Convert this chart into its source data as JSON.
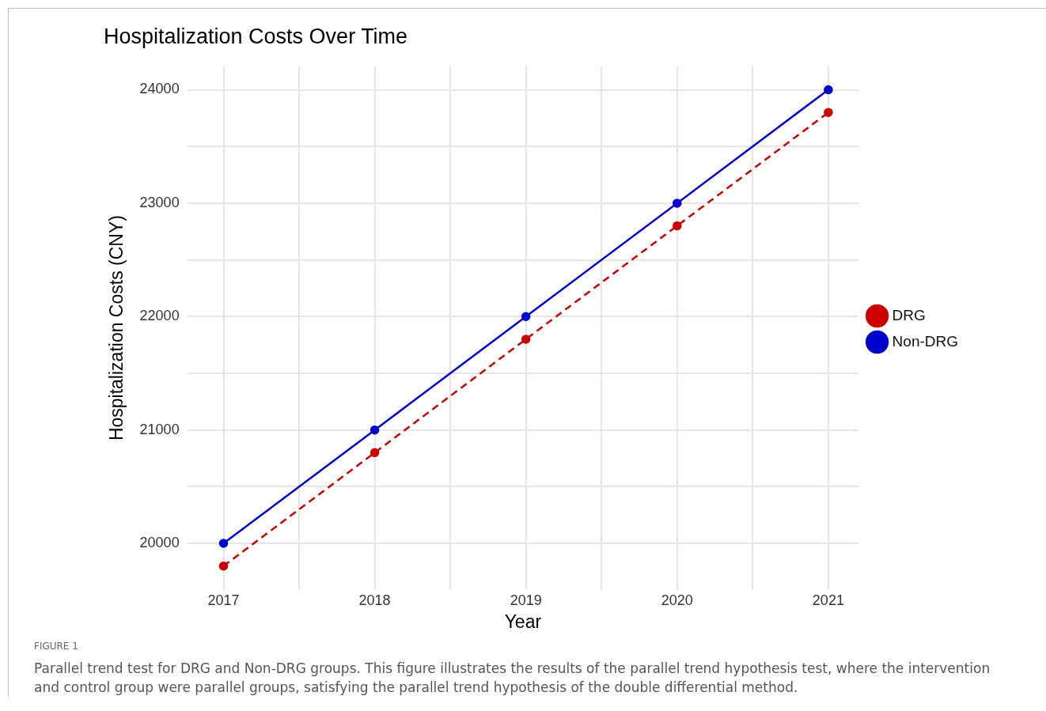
{
  "chart_data": {
    "type": "line",
    "title": "Hospitalization Costs Over Time",
    "xlabel": "Year",
    "ylabel": "Hospitalization Costs (CNY)",
    "x": [
      2017,
      2018,
      2019,
      2020,
      2021
    ],
    "series": [
      {
        "name": "DRG",
        "color": "#cc0000",
        "line_style": "dashed",
        "values": [
          19800,
          20800,
          21800,
          22800,
          23800
        ]
      },
      {
        "name": "Non-DRG",
        "color": "#0000cc",
        "line_style": "solid",
        "values": [
          20000,
          21000,
          22000,
          23000,
          24000
        ]
      }
    ],
    "xlim": [
      2016.76,
      2021.2
    ],
    "xticks": [
      2017,
      {
        "value": 2017.5,
        "label": null
      },
      2018,
      {
        "value": 2018.5,
        "label": null
      },
      2019,
      {
        "value": 2019.5,
        "label": null
      },
      2020,
      {
        "value": 2020.5,
        "label": null
      },
      2021
    ],
    "ylim": [
      19590,
      24210
    ],
    "yticks": [
      20000,
      {
        "value": 20500,
        "label": null
      },
      21000,
      {
        "value": 21500,
        "label": null
      },
      22000,
      {
        "value": 22500,
        "label": null
      },
      23000,
      {
        "value": 23500,
        "label": null
      },
      24000
    ],
    "grid": true,
    "legend": "right",
    "marker": "circle",
    "annotations": [
      "FIGURE 1",
      "Parallel trend test for DRG and Non-DRG groups. This figure illustrates the results of the parallel trend hypothesis test, where the intervention and control group were parallel groups, satisfying the parallel trend hypothesis of the double differential method."
    ]
  }
}
